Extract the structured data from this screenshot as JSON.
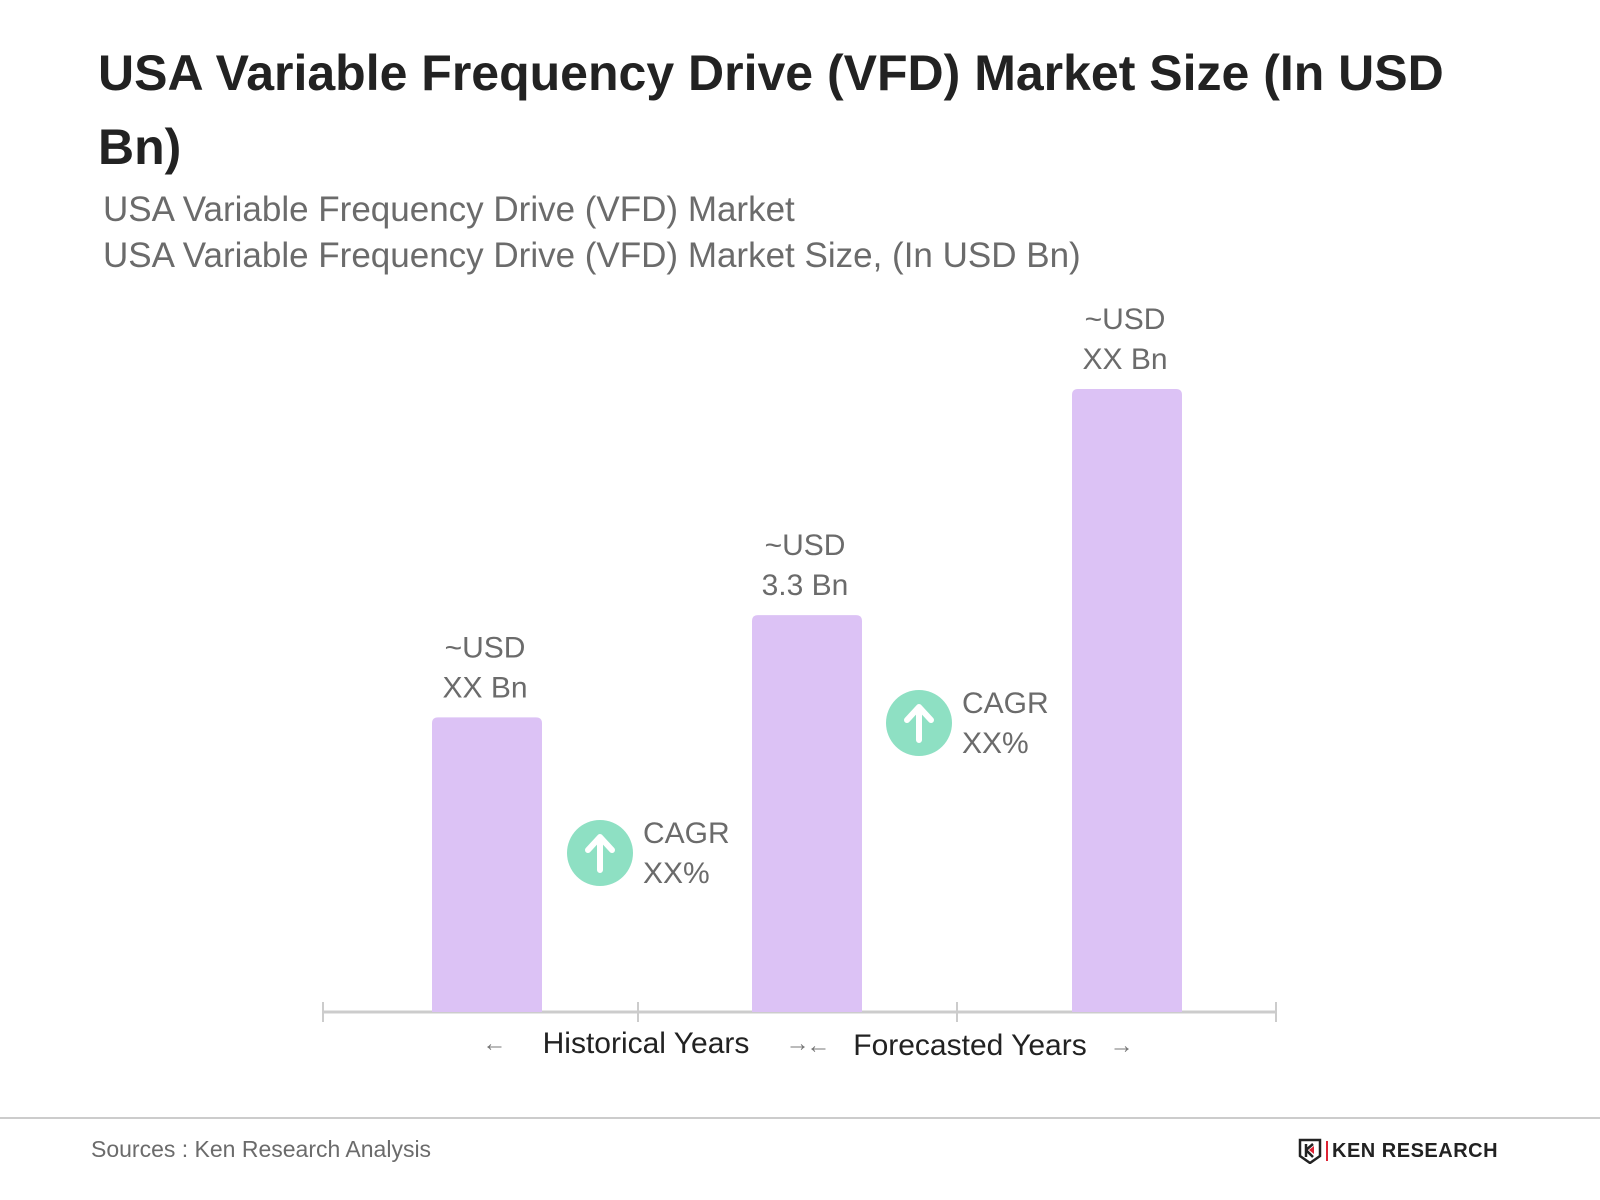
{
  "chart_data": {
    "type": "bar",
    "title": "USA Variable Frequency Drive (VFD) Market Size (In USD Bn)",
    "subtitle_1": "USA Variable Frequency Drive (VFD) Market",
    "subtitle_2": "USA Variable Frequency Drive (VFD) Market Size, (In USD Bn)",
    "categories": [
      "",
      "",
      ""
    ],
    "values": [
      2.45,
      3.3,
      5.18
    ],
    "data_labels": [
      [
        "~USD",
        "XX Bn"
      ],
      [
        "~USD",
        "3.3 Bn"
      ],
      [
        "~USD",
        "XX Bn"
      ]
    ],
    "cagr_labels": [
      [
        "CAGR",
        "XX%"
      ],
      [
        "CAGR",
        "XX%"
      ]
    ],
    "period_labels": [
      "Historical Years",
      "Forecasted Years"
    ],
    "ylim": [
      0,
      5.5
    ],
    "grid": false,
    "bar_color": "#dcc2f5",
    "cagr_icon_color": "#8ee0c3",
    "axis_color": "#cccccc"
  },
  "footer": {
    "source": "Sources : Ken Research Analysis",
    "logo_text": "KEN RESEARCH"
  }
}
